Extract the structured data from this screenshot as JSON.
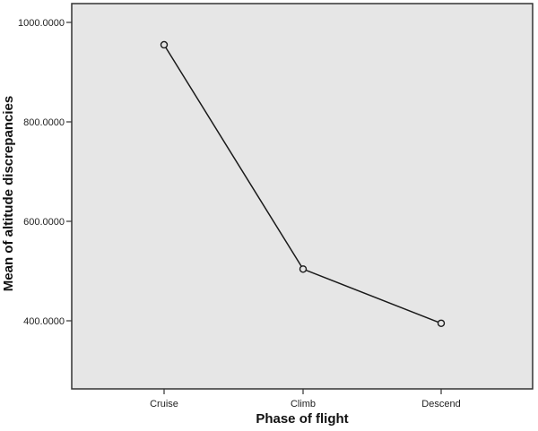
{
  "chart_data": {
    "type": "line",
    "title": "",
    "xlabel": "Phase of flight",
    "ylabel": "Mean of altitude discrepancies",
    "categories": [
      "Cruise",
      "Climb",
      "Descend"
    ],
    "series": [
      {
        "name": "Mean of altitude discrepancies",
        "values": [
          955,
          504,
          395
        ],
        "marker": "open-circle",
        "color": "#1a1a1a"
      }
    ],
    "yticks": [
      400,
      600,
      800,
      1000
    ],
    "ytick_labels": [
      "400.0000",
      "600.0000",
      "800.0000",
      "1000.0000"
    ],
    "ylim": [
      245,
      1040
    ],
    "grid": false,
    "legend": "none",
    "plot_background": "#e6e6e6"
  }
}
